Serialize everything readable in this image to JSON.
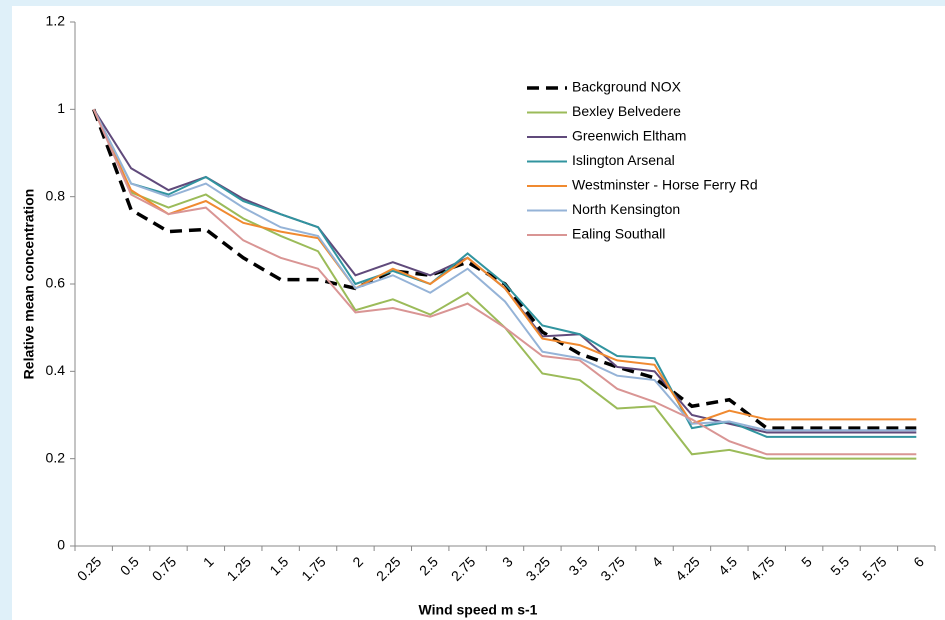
{
  "chart_data": {
    "type": "line",
    "x_label": "Wind speed m s-1",
    "y_label": "Relative mean concentration",
    "categories": [
      "0.25",
      "0.5",
      "0.75",
      "1",
      "1.25",
      "1.5",
      "1.75",
      "2",
      "2.25",
      "2.5",
      "2.75",
      "3",
      "3.25",
      "3.5",
      "3.75",
      "4",
      "4.25",
      "4.5",
      "4.75",
      "5",
      "5.5",
      "5.75",
      "6"
    ],
    "ylim": [
      0,
      1.2
    ],
    "yticks": [
      0,
      0.2,
      0.4,
      0.6,
      0.8,
      1,
      1.2
    ],
    "grid": false,
    "legend": "upper right",
    "series": [
      {
        "name": "Background NOX",
        "color": "#000000",
        "dashed": true,
        "values": [
          1,
          0.77,
          0.72,
          0.725,
          0.66,
          0.61,
          0.61,
          0.59,
          0.63,
          0.62,
          0.65,
          0.6,
          0.49,
          0.44,
          0.41,
          0.385,
          0.32,
          0.335,
          0.27,
          0.27,
          0.27,
          0.27,
          0.27
        ]
      },
      {
        "name": "Bexley Belvedere",
        "color": "#9bbb59",
        "values": [
          1,
          0.81,
          0.775,
          0.805,
          0.75,
          0.71,
          0.675,
          0.54,
          0.565,
          0.53,
          0.58,
          0.5,
          0.395,
          0.38,
          0.315,
          0.32,
          0.21,
          0.22,
          0.2,
          0.2,
          0.2,
          0.2,
          0.2
        ]
      },
      {
        "name": "Greenwich Eltham",
        "color": "#604a7b",
        "values": [
          1,
          0.865,
          0.815,
          0.845,
          0.795,
          0.76,
          0.73,
          0.62,
          0.65,
          0.62,
          0.66,
          0.59,
          0.48,
          0.485,
          0.41,
          0.4,
          0.3,
          0.28,
          0.26,
          0.26,
          0.26,
          0.26,
          0.26
        ]
      },
      {
        "name": "Islington Arsenal",
        "color": "#31949f",
        "values": [
          1,
          0.83,
          0.805,
          0.845,
          0.79,
          0.76,
          0.73,
          0.6,
          0.63,
          0.6,
          0.67,
          0.6,
          0.505,
          0.485,
          0.435,
          0.43,
          0.27,
          0.285,
          0.25,
          0.25,
          0.25,
          0.25,
          0.25
        ]
      },
      {
        "name": "Westminster - Horse Ferry Rd",
        "color": "#f08a30",
        "values": [
          1,
          0.815,
          0.76,
          0.79,
          0.74,
          0.72,
          0.705,
          0.59,
          0.635,
          0.6,
          0.66,
          0.59,
          0.475,
          0.46,
          0.425,
          0.415,
          0.28,
          0.31,
          0.29,
          0.29,
          0.29,
          0.29,
          0.29
        ]
      },
      {
        "name": "North Kensington",
        "color": "#95b3d7",
        "values": [
          1,
          0.83,
          0.8,
          0.83,
          0.775,
          0.73,
          0.71,
          0.59,
          0.62,
          0.58,
          0.635,
          0.56,
          0.445,
          0.43,
          0.39,
          0.38,
          0.28,
          0.285,
          0.265,
          0.265,
          0.265,
          0.265,
          0.265
        ]
      },
      {
        "name": "Ealing Southall",
        "color": "#d99594",
        "values": [
          1,
          0.805,
          0.76,
          0.775,
          0.7,
          0.66,
          0.635,
          0.535,
          0.545,
          0.525,
          0.555,
          0.5,
          0.435,
          0.425,
          0.36,
          0.33,
          0.29,
          0.24,
          0.21,
          0.21,
          0.21,
          0.21,
          0.21
        ]
      }
    ]
  }
}
